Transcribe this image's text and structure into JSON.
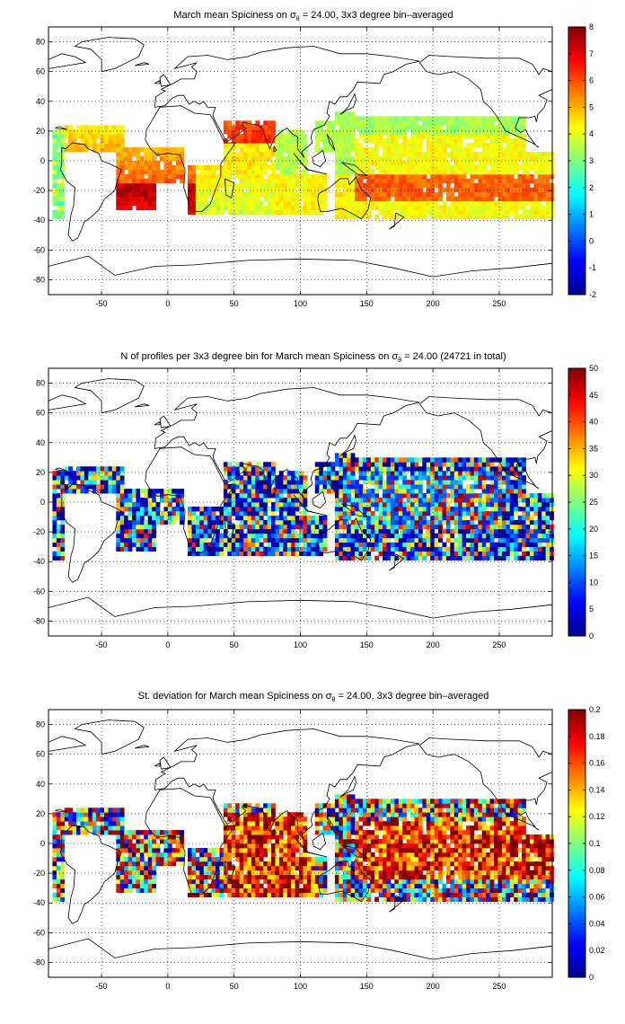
{
  "figure": {
    "panels": [
      {
        "title_pre": "March mean Spiciness on ",
        "title_post": " = 24.00, 3x3 degree bin–averaged",
        "colorbar": {
          "min": -2,
          "max": 8,
          "ticks": [
            "-2",
            "-1",
            "0",
            "1",
            "2",
            "3",
            "4",
            "5",
            "6",
            "7",
            "8"
          ]
        }
      },
      {
        "title_pre": "N of profiles per 3x3 degree bin for March mean Spiciness on ",
        "title_post": " = 24.00 (24721 in total)",
        "colorbar": {
          "min": 0,
          "max": 50,
          "ticks": [
            "0",
            "5",
            "10",
            "15",
            "20",
            "25",
            "30",
            "35",
            "40",
            "45",
            "50"
          ]
        }
      },
      {
        "title_pre": "St. deviation for March mean Spiciness on ",
        "title_post": " = 24.00, 3x3 degree bin–averaged",
        "colorbar": {
          "min": 0,
          "max": 0.2,
          "ticks": [
            "0",
            "0.02",
            "0.04",
            "0.06",
            "0.08",
            "0.1",
            "0.12",
            "0.14",
            "0.16",
            "0.18",
            "0.2"
          ]
        }
      }
    ],
    "sigma_symbol": "σ",
    "sigma_sub": "θ",
    "x_ticks": [
      "-50",
      "0",
      "50",
      "100",
      "150",
      "200",
      "250"
    ],
    "x_tick_values": [
      -50,
      0,
      50,
      100,
      150,
      200,
      250
    ],
    "y_ticks": [
      "80",
      "60",
      "40",
      "20",
      "0",
      "-20",
      "-40",
      "-60",
      "-80"
    ],
    "y_tick_values": [
      80,
      60,
      40,
      20,
      0,
      -20,
      -40,
      -60,
      -80
    ],
    "lon_range": [
      -90,
      290
    ],
    "lat_range": [
      -90,
      90
    ],
    "colormap": "jet",
    "grid": "dotted"
  }
}
